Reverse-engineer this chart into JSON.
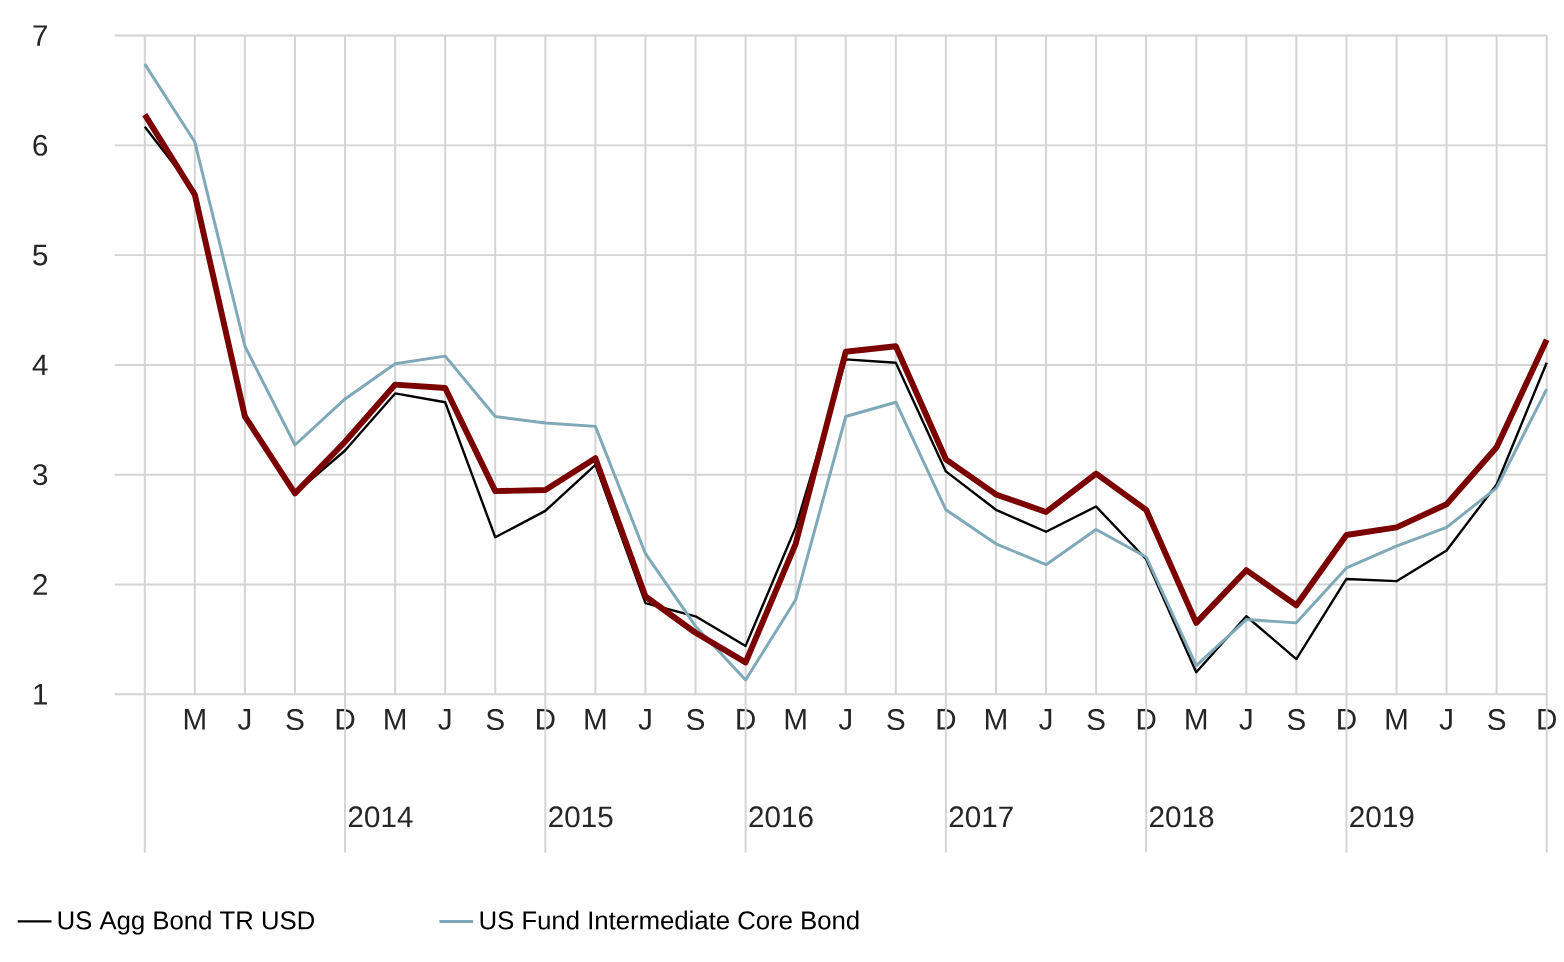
{
  "chart_data": {
    "type": "line",
    "categories": [
      null,
      "M",
      "J",
      "S",
      "D",
      "M",
      "J",
      "S",
      "D",
      "M",
      "J",
      "S",
      "D",
      "M",
      "J",
      "S",
      "D",
      "M",
      "J",
      "S",
      "D",
      "M",
      "J",
      "S",
      "D",
      "M",
      "J",
      "S",
      "D"
    ],
    "series": [
      {
        "color": "#7b0000",
        "values": [
          6.28,
          5.55,
          3.53,
          2.83,
          3.3,
          3.82,
          3.79,
          2.85,
          2.86,
          3.15,
          1.89,
          1.56,
          1.29,
          2.37,
          4.12,
          4.17,
          3.14,
          2.82,
          2.66,
          3.01,
          2.68,
          1.65,
          2.13,
          1.81,
          2.45,
          2.52,
          2.73,
          3.25,
          4.23
        ]
      },
      {
        "name": "US Agg Bond TR USD",
        "color": "#000000",
        "values": [
          6.17,
          5.58,
          3.53,
          2.83,
          3.22,
          3.74,
          3.66,
          2.43,
          2.67,
          3.09,
          1.83,
          1.71,
          1.44,
          2.52,
          4.05,
          4.02,
          3.03,
          2.68,
          2.48,
          2.71,
          2.23,
          1.2,
          1.71,
          1.32,
          2.05,
          2.03,
          2.31,
          2.91,
          4.02
        ]
      },
      {
        "name": "US Fund Intermediate Core Bond",
        "color": "#7fa9b9",
        "values": [
          6.74,
          6.03,
          4.17,
          3.27,
          3.69,
          4.01,
          4.08,
          3.53,
          3.47,
          3.44,
          2.28,
          1.62,
          1.13,
          1.86,
          3.53,
          3.66,
          2.68,
          2.37,
          2.18,
          2.5,
          2.25,
          1.26,
          1.68,
          1.65,
          2.15,
          2.35,
          2.52,
          2.88,
          3.78
        ]
      }
    ],
    "ylim": [
      1,
      7
    ],
    "yticks": [
      1,
      2,
      3,
      4,
      5,
      6,
      7
    ],
    "grid": true,
    "legend": "bottom",
    "annotations": [
      "2014",
      "2015",
      "2016",
      "2017",
      "2018",
      "2019"
    ]
  }
}
